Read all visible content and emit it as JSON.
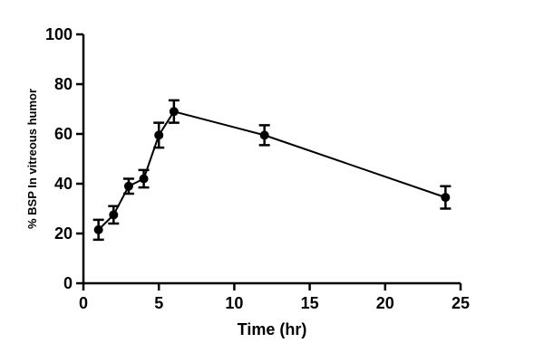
{
  "chart_data": {
    "type": "line",
    "title": "",
    "xlabel": "Time (hr)",
    "ylabel": "% BSP In vitreous humor",
    "xlim": [
      0,
      25
    ],
    "ylim": [
      0,
      100
    ],
    "x_ticks": [
      0,
      5,
      10,
      15,
      20,
      25
    ],
    "y_ticks": [
      0,
      20,
      40,
      60,
      80,
      100
    ],
    "grid": false,
    "legend": "none",
    "series": [
      {
        "x": [
          1,
          2,
          3,
          4,
          5,
          6,
          12,
          24
        ],
        "y": [
          21.5,
          27.5,
          39,
          42,
          59.5,
          69,
          59.5,
          34.5
        ],
        "error": [
          4,
          3.5,
          3,
          3.5,
          5,
          4.5,
          4,
          4.5
        ]
      }
    ]
  }
}
